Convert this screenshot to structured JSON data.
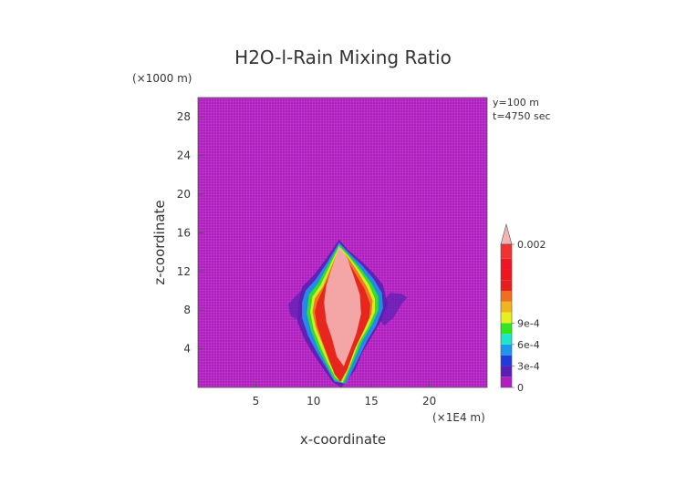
{
  "chart_data": {
    "type": "heatmap",
    "title": "H2O-l-Rain Mixing Ratio",
    "xlabel": "x-coordinate",
    "ylabel": "z-coordinate",
    "x_units": "(×1E4 m)",
    "y_units": "(×1000 m)",
    "xlim": [
      0,
      25
    ],
    "ylim": [
      0,
      30
    ],
    "x_ticks": [
      5,
      10,
      15,
      20
    ],
    "y_ticks": [
      4,
      8,
      12,
      16,
      20,
      24,
      28
    ],
    "annotations": [
      "y=100 m",
      "t=4750 sec"
    ],
    "colorbar": {
      "labels": [
        {
          "value": 0.002,
          "text": "0.002"
        },
        {
          "value": 0.0009,
          "text": "9e-4"
        },
        {
          "value": 0.0006,
          "text": "6e-4"
        },
        {
          "value": 0.0003,
          "text": "3e-4"
        },
        {
          "value": 0,
          "text": "0"
        }
      ],
      "levels": [
        0,
        0.00015,
        0.0003,
        0.00045,
        0.0006,
        0.00075,
        0.0009,
        0.00105,
        0.0012,
        0.00135,
        0.0015,
        0.00165,
        0.0018,
        0.002
      ],
      "colors": [
        "#b01ec0",
        "#5a1eb4",
        "#1e3cdc",
        "#1e96f0",
        "#1ee6c8",
        "#32e61e",
        "#e6f01e",
        "#f0b41e",
        "#f06e1e",
        "#e61e1e",
        "#f0141e",
        "#f01428",
        "#f23232",
        "#f5b4b4"
      ],
      "extend": "max"
    },
    "field_description_regions": [
      {
        "level": "0.002+",
        "x_range": [
          10.8,
          14.2
        ],
        "z_range": [
          2,
          15.2
        ]
      },
      {
        "level": "0.0015-0.0018",
        "x_range": [
          9.8,
          15.2
        ],
        "z_range": [
          0.5,
          13
        ]
      },
      {
        "level": "3e-4 to 9e-4",
        "x_range": [
          8.5,
          16.5
        ],
        "z_range": [
          0.5,
          10.5
        ]
      },
      {
        "level": "0 to 3e-4",
        "x_range": [
          7.8,
          18.2
        ],
        "z_range": [
          3,
          10
        ]
      }
    ]
  }
}
